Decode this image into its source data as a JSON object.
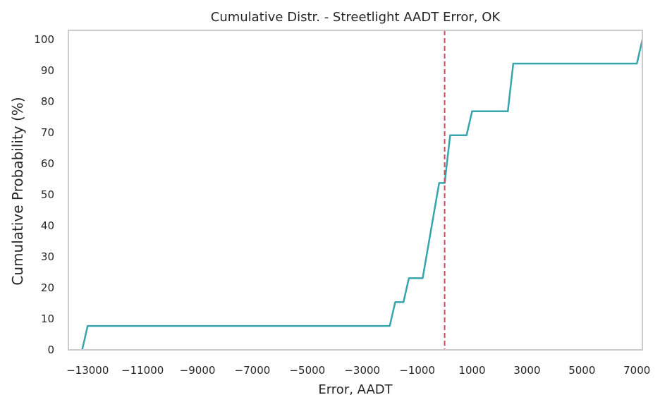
{
  "chart_data": {
    "type": "line",
    "title": "Cumulative Distr. - Streetlight AADT Error, OK",
    "xlabel": "Error, AADT",
    "ylabel": "Cumulative Probability (%)",
    "xlim": [
      -13700,
      7200
    ],
    "ylim": [
      0,
      103
    ],
    "x_ticks": [
      -13000,
      -11000,
      -9000,
      -7000,
      -5000,
      -3000,
      -1000,
      1000,
      3000,
      5000,
      7000
    ],
    "x_tick_labels": [
      "−13000",
      "−11000",
      "−9000",
      "−7000",
      "−5000",
      "−3000",
      "−1000",
      "1000",
      "3000",
      "5000",
      "7000"
    ],
    "y_ticks": [
      0,
      10,
      20,
      30,
      40,
      50,
      60,
      70,
      80,
      90,
      100
    ],
    "grid": false,
    "reference_line": {
      "x": 0,
      "style": "dashed",
      "color": "#c44e52"
    },
    "series": [
      {
        "color": "#36a5ad",
        "x": [
          -13200,
          -13000,
          -2000,
          -1800,
          -1500,
          -1300,
          -800,
          -200,
          0,
          200,
          800,
          1000,
          2300,
          2500,
          7000,
          7200
        ],
        "y": [
          0,
          7.7,
          7.7,
          15.4,
          15.4,
          23.1,
          23.1,
          53.8,
          53.8,
          69.2,
          69.2,
          76.9,
          76.9,
          92.3,
          92.3,
          100
        ]
      }
    ]
  }
}
